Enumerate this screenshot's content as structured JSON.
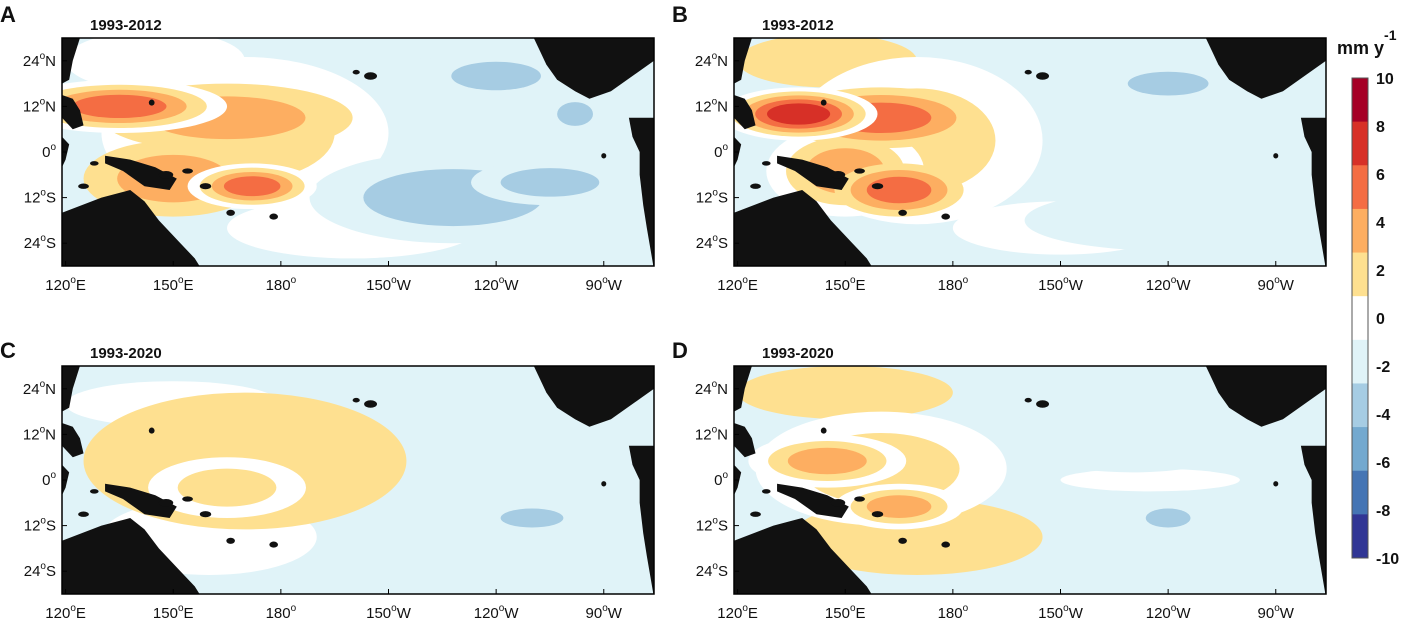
{
  "chart_data": {
    "type": "heatmap",
    "panels": [
      {
        "label": "A",
        "period": "1993-2012",
        "centers": [
          {
            "lon": 135,
            "lat": 12,
            "v": 7,
            "rx": 30,
            "ry": 7
          },
          {
            "lon": 165,
            "lat": 9,
            "v": 4,
            "rx": 35,
            "ry": 9
          },
          {
            "lon": 172,
            "lat": -9,
            "v": 7,
            "rx": 18,
            "ry": 6
          },
          {
            "lon": 150,
            "lat": -7,
            "v": 4,
            "rx": 25,
            "ry": 10
          },
          {
            "lon": 170,
            "lat": 5,
            "v": 2.5,
            "rx": 40,
            "ry": 20
          },
          {
            "lon": 145,
            "lat": 24,
            "v": 1.5,
            "rx": 25,
            "ry": 8
          },
          {
            "lon": 200,
            "lat": -20,
            "v": 1,
            "rx": 35,
            "ry": 8
          },
          {
            "lon": 255,
            "lat": -8,
            "v": -4,
            "rx": 22,
            "ry": 6
          },
          {
            "lon": 240,
            "lat": 20,
            "v": -4,
            "rx": 20,
            "ry": 6
          },
          {
            "lon": 262,
            "lat": 10,
            "v": -3.5,
            "rx": 8,
            "ry": 5
          },
          {
            "lon": 228,
            "lat": -12,
            "v": -2.5,
            "rx": 40,
            "ry": 12
          },
          {
            "lon": 230,
            "lat": 15,
            "v": -2,
            "rx": 35,
            "ry": 10
          }
        ]
      },
      {
        "label": "B",
        "period": "1993-2012",
        "centers": [
          {
            "lon": 137,
            "lat": 10,
            "v": 9,
            "rx": 22,
            "ry": 7
          },
          {
            "lon": 160,
            "lat": 9,
            "v": 6,
            "rx": 28,
            "ry": 8
          },
          {
            "lon": 165,
            "lat": -10,
            "v": 6,
            "rx": 18,
            "ry": 7
          },
          {
            "lon": 150,
            "lat": -5,
            "v": 4.5,
            "rx": 22,
            "ry": 12
          },
          {
            "lon": 170,
            "lat": 3,
            "v": 3,
            "rx": 35,
            "ry": 22
          },
          {
            "lon": 210,
            "lat": -20,
            "v": 1.5,
            "rx": 30,
            "ry": 7
          },
          {
            "lon": 145,
            "lat": 24,
            "v": 2,
            "rx": 25,
            "ry": 7
          },
          {
            "lon": 240,
            "lat": 18,
            "v": -4,
            "rx": 18,
            "ry": 5
          },
          {
            "lon": 240,
            "lat": -18,
            "v": -2,
            "rx": 40,
            "ry": 8
          }
        ]
      },
      {
        "label": "C",
        "period": "1993-2020",
        "centers": [
          {
            "lon": 165,
            "lat": -2,
            "v": 3.5,
            "rx": 22,
            "ry": 8
          },
          {
            "lon": 170,
            "lat": 5,
            "v": 2,
            "rx": 45,
            "ry": 18
          },
          {
            "lon": 160,
            "lat": -15,
            "v": 1.5,
            "rx": 30,
            "ry": 10
          },
          {
            "lon": 150,
            "lat": 20,
            "v": 1.2,
            "rx": 30,
            "ry": 6
          },
          {
            "lon": 250,
            "lat": -10,
            "v": -3,
            "rx": 14,
            "ry": 4
          },
          {
            "lon": 230,
            "lat": 10,
            "v": -1.5,
            "rx": 35,
            "ry": 12
          }
        ]
      },
      {
        "label": "D",
        "period": "1993-2020",
        "centers": [
          {
            "lon": 145,
            "lat": 5,
            "v": 4.5,
            "rx": 22,
            "ry": 7
          },
          {
            "lon": 165,
            "lat": -7,
            "v": 4.5,
            "rx": 18,
            "ry": 6
          },
          {
            "lon": 160,
            "lat": 3,
            "v": 3,
            "rx": 35,
            "ry": 15
          },
          {
            "lon": 170,
            "lat": -15,
            "v": 2,
            "rx": 35,
            "ry": 10
          },
          {
            "lon": 150,
            "lat": 23,
            "v": 2,
            "rx": 30,
            "ry": 7
          },
          {
            "lon": 235,
            "lat": 0,
            "v": 0.5,
            "rx": 25,
            "ry": 3
          },
          {
            "lon": 240,
            "lat": -10,
            "v": -3,
            "rx": 10,
            "ry": 4
          },
          {
            "lon": 230,
            "lat": 12,
            "v": -1.5,
            "rx": 35,
            "ry": 10
          }
        ]
      }
    ],
    "x_ticks": [
      {
        "lon": 120,
        "main": "120",
        "sup": "o",
        "suffix": "E"
      },
      {
        "lon": 150,
        "main": "150",
        "sup": "o",
        "suffix": "E"
      },
      {
        "lon": 180,
        "main": "180",
        "sup": "o",
        "suffix": ""
      },
      {
        "lon": 210,
        "main": "150",
        "sup": "o",
        "suffix": "W"
      },
      {
        "lon": 240,
        "main": "120",
        "sup": "o",
        "suffix": "W"
      },
      {
        "lon": 270,
        "main": "90",
        "sup": "o",
        "suffix": "W"
      }
    ],
    "y_ticks": [
      {
        "lat": 24,
        "main": "24",
        "sup": "o",
        "suffix": "N"
      },
      {
        "lat": 12,
        "main": "12",
        "sup": "o",
        "suffix": "N"
      },
      {
        "lat": 0,
        "main": "0",
        "sup": "o",
        "suffix": ""
      },
      {
        "lat": -12,
        "main": "12",
        "sup": "o",
        "suffix": "S"
      },
      {
        "lat": -24,
        "main": "24",
        "sup": "o",
        "suffix": "S"
      }
    ],
    "lon_range": [
      119,
      284
    ],
    "lat_range": [
      -30,
      30
    ],
    "colorbar": {
      "unit_main": "mm y",
      "unit_sup": "-1",
      "levels": [
        -10,
        -8,
        -6,
        -4,
        -2,
        0,
        2,
        4,
        6,
        8,
        10
      ],
      "colors": [
        "#313695",
        "#4575b4",
        "#74a9cf",
        "#a6cce3",
        "#e0f3f8",
        "#ffffff",
        "#fee090",
        "#fdae61",
        "#f46d43",
        "#d73027",
        "#a50026"
      ],
      "labels": [
        "10",
        "8",
        "6",
        "4",
        "2",
        "0",
        "-2",
        "-4",
        "-6",
        "-8",
        "-10"
      ]
    },
    "land_color": "#111111"
  }
}
